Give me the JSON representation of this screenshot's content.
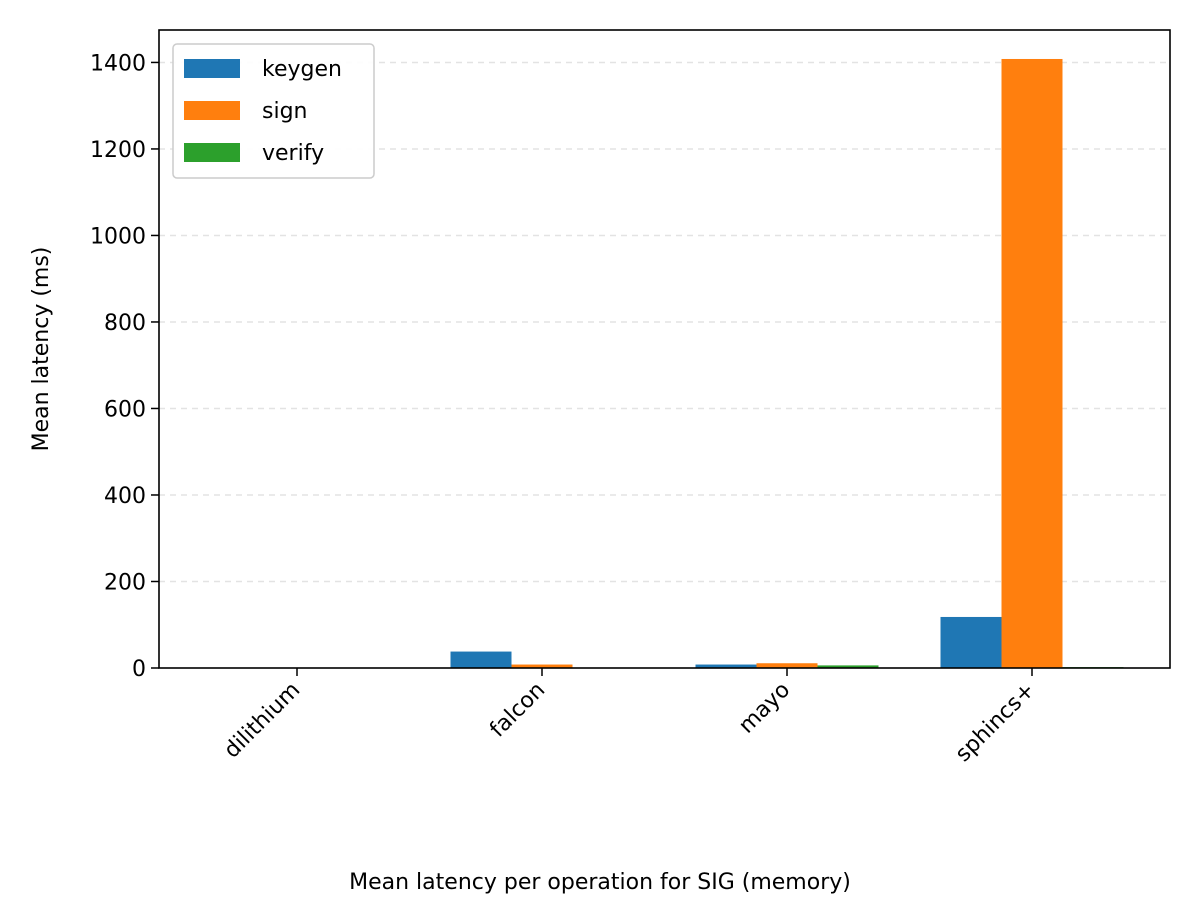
{
  "chart_data": {
    "type": "bar",
    "title": "",
    "xlabel": "Mean latency per operation for SIG (memory)",
    "ylabel": "Mean latency (ms)",
    "categories": [
      "dilithium",
      "falcon",
      "mayo",
      "sphincs+"
    ],
    "series": [
      {
        "name": "keygen",
        "color": "#1f77b4",
        "values": [
          0.1,
          38,
          8,
          118
        ]
      },
      {
        "name": "sign",
        "color": "#ff7f0e",
        "values": [
          0.2,
          8,
          11,
          1408
        ]
      },
      {
        "name": "verify",
        "color": "#2ca02c",
        "values": [
          0.05,
          0.1,
          6,
          2
        ]
      }
    ],
    "ylim": [
      0,
      1475
    ],
    "yticks": [
      0,
      200,
      400,
      600,
      800,
      1000,
      1200,
      1400
    ],
    "grid": "y-dashed",
    "legend_position": "top-left"
  }
}
